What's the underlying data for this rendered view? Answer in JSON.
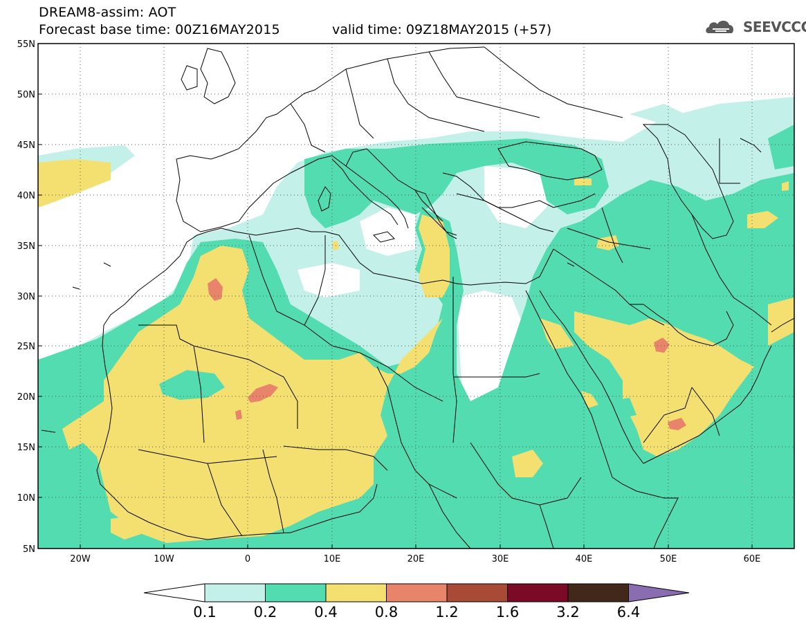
{
  "header": {
    "title": "DREAM8-assim: AOT",
    "base_time": "Forecast base time: 00Z16MAY2015",
    "valid_time": "valid time: 09Z18MAY2015 (+57)",
    "logo_text": "SEEVCCC"
  },
  "map": {
    "lat_range": [
      5,
      55
    ],
    "lon_range": [
      -25,
      65
    ],
    "lat_ticks": [
      "5N",
      "10N",
      "15N",
      "20N",
      "25N",
      "30N",
      "35N",
      "40N",
      "45N",
      "50N",
      "55N"
    ],
    "lon_ticks": [
      "20W",
      "10W",
      "0",
      "10E",
      "20E",
      "30E",
      "40E",
      "50E",
      "60E"
    ],
    "grid": true,
    "colors": {
      "c01": "#c3f0e8",
      "c02": "#52dcb0",
      "c04": "#f4e070",
      "c08": "#e8846a",
      "c12": "#a84a36",
      "c16": "#7a0a26",
      "c32": "#42281a",
      "c64": "#8a6cb0"
    }
  },
  "colorbar": {
    "labels": [
      "0.1",
      "0.2",
      "0.4",
      "0.8",
      "1.2",
      "1.6",
      "3.2",
      "6.4"
    ],
    "colors": [
      "#c3f0e8",
      "#52dcb0",
      "#f4e070",
      "#e8846a",
      "#a84a36",
      "#7a0a26",
      "#42281a"
    ],
    "over_color": "#8a6cb0",
    "under_color": "#ffffff"
  }
}
